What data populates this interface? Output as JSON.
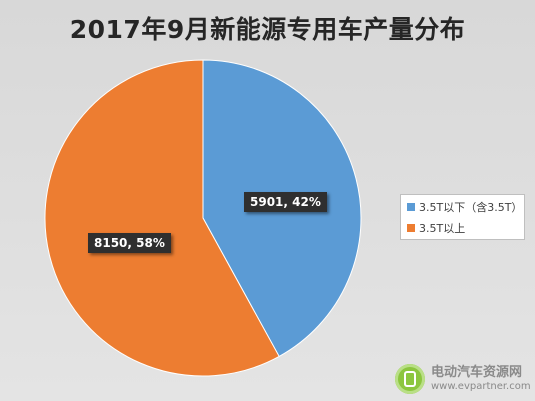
{
  "chart_data": {
    "type": "pie",
    "title": "2017年9月新能源专用车产量分布",
    "series": [
      {
        "name": "3.5T以下（含3.5T）",
        "value": 5901,
        "percent": 42,
        "color": "#5b9bd5",
        "label": "5901, 42%"
      },
      {
        "name": "3.5T以上",
        "value": 8150,
        "percent": 58,
        "color": "#ed7d31",
        "label": "8150, 58%"
      }
    ],
    "legend_position": "right"
  },
  "watermark": {
    "name": "电动汽车资源网",
    "url": "www.evpartner.com"
  }
}
